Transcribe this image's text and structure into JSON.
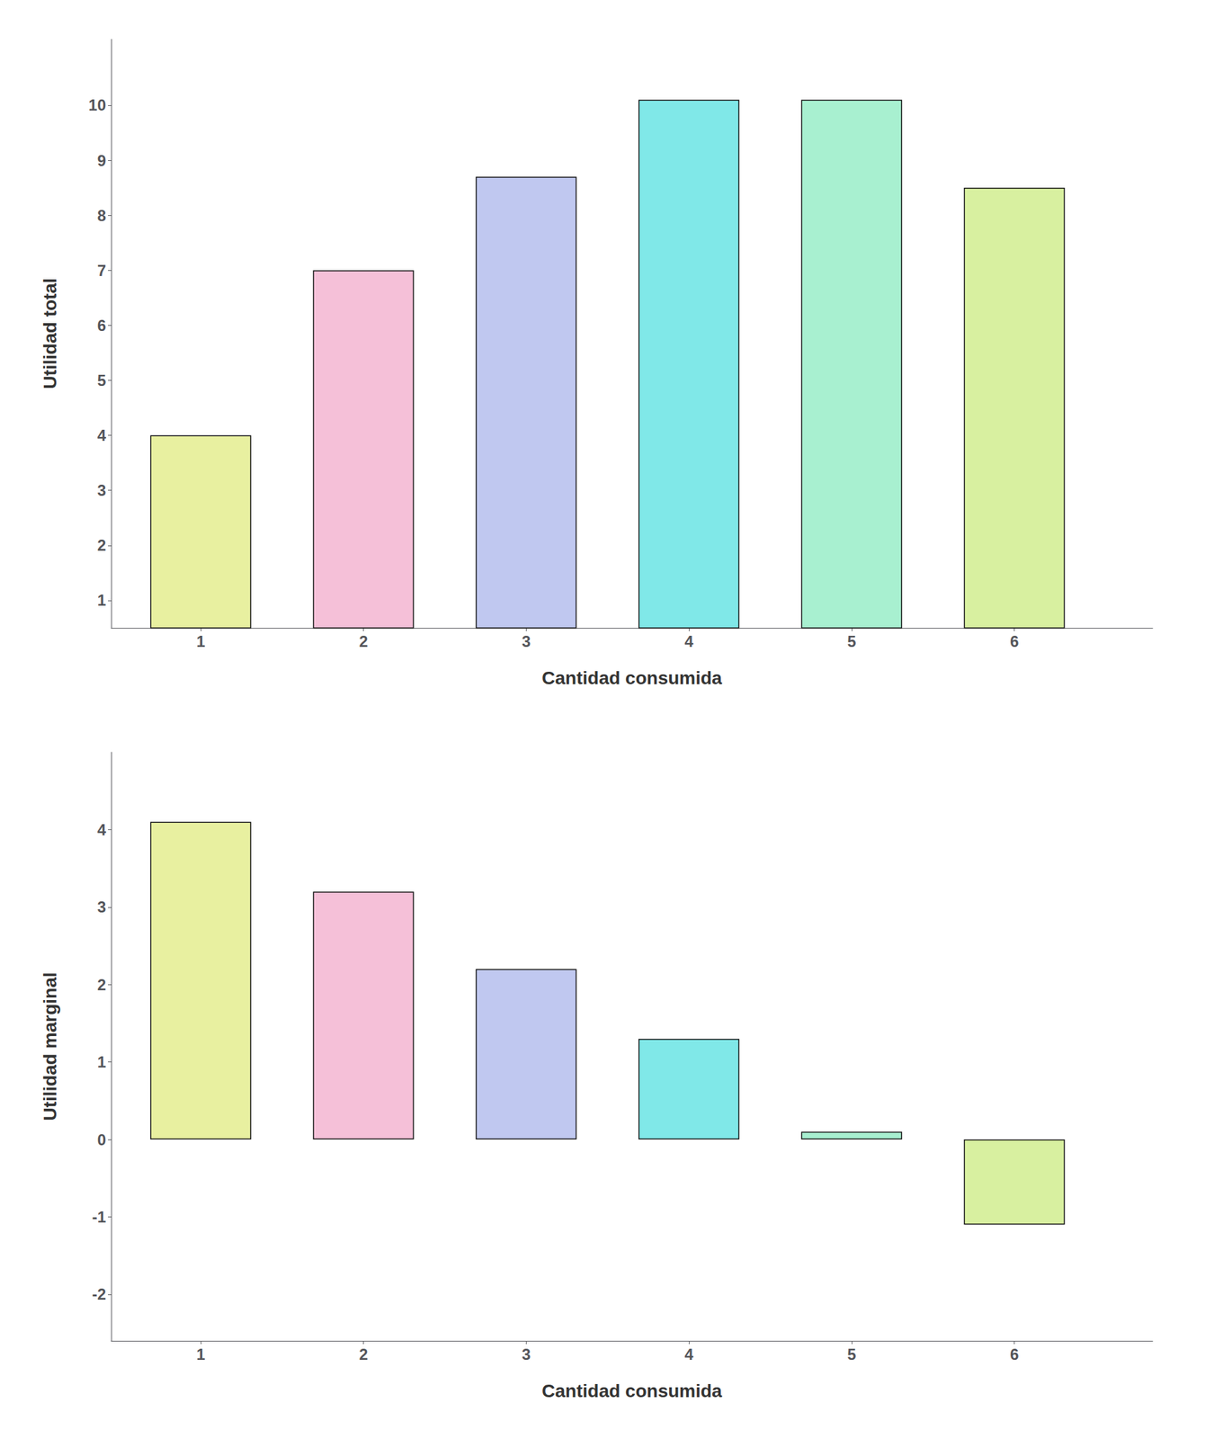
{
  "chart_data": [
    {
      "type": "bar",
      "x": [
        1,
        2,
        3,
        4,
        5,
        6
      ],
      "values": [
        4,
        7,
        8.7,
        10.1,
        10.1,
        8.5
      ],
      "colors": [
        "#e8f0a0",
        "#f5c0d8",
        "#c0c8f0",
        "#80e8e8",
        "#a8f0d0",
        "#d8f0a0"
      ],
      "xlabel": "Cantidad consumida",
      "ylabel": "Utilidad total",
      "xlim": [
        0.45,
        6.85
      ],
      "xticks": [
        1,
        2,
        3,
        4,
        5,
        6
      ],
      "ylim": [
        0.5,
        11.2
      ],
      "yticks": [
        1,
        2,
        3,
        4,
        5,
        6,
        7,
        8,
        9,
        10
      ],
      "grid": false
    },
    {
      "type": "bar",
      "x": [
        1,
        2,
        3,
        4,
        5,
        6
      ],
      "values": [
        4.1,
        3.2,
        2.2,
        1.3,
        0.1,
        -1.1
      ],
      "colors": [
        "#e8f0a0",
        "#f5c0d8",
        "#c0c8f0",
        "#80e8e8",
        "#a8f0d0",
        "#d8f0a0"
      ],
      "xlabel": "Cantidad consumida",
      "ylabel": "Utilidad marginal",
      "xlim": [
        0.45,
        6.85
      ],
      "xticks": [
        1,
        2,
        3,
        4,
        5,
        6
      ],
      "ylim": [
        -2.6,
        5.0
      ],
      "yticks": [
        -2,
        -1,
        0,
        1,
        2,
        3,
        4
      ],
      "grid": false
    }
  ]
}
